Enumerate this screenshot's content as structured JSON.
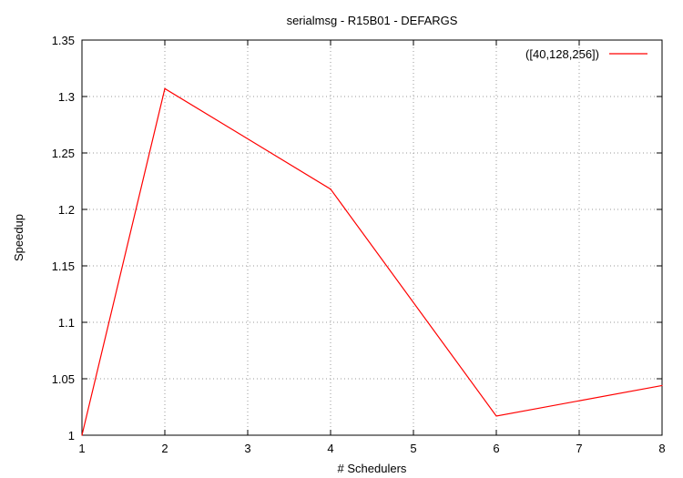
{
  "chart_data": {
    "type": "line",
    "title": "serialmsg - R15B01 - DEFARGS",
    "xlabel": "# Schedulers",
    "ylabel": "Speedup",
    "xlim": [
      1,
      8
    ],
    "ylim": [
      1,
      1.35
    ],
    "x_ticks": [
      1,
      2,
      3,
      4,
      5,
      6,
      7,
      8
    ],
    "y_ticks": [
      1,
      1.05,
      1.1,
      1.15,
      1.2,
      1.25,
      1.3,
      1.35
    ],
    "x_tick_labels": [
      "1",
      "2",
      "3",
      "4",
      "5",
      "6",
      "7",
      "8"
    ],
    "y_tick_labels": [
      "1",
      "1.05",
      "1.1",
      "1.15",
      "1.2",
      "1.25",
      "1.3",
      "1.35"
    ],
    "grid": true,
    "legend_position": "top-right",
    "series": [
      {
        "name": "([40,128,256])",
        "color": "#ff0000",
        "x": [
          1,
          2,
          4,
          6,
          8
        ],
        "y": [
          1.0,
          1.307,
          1.218,
          1.017,
          1.044
        ]
      }
    ]
  }
}
